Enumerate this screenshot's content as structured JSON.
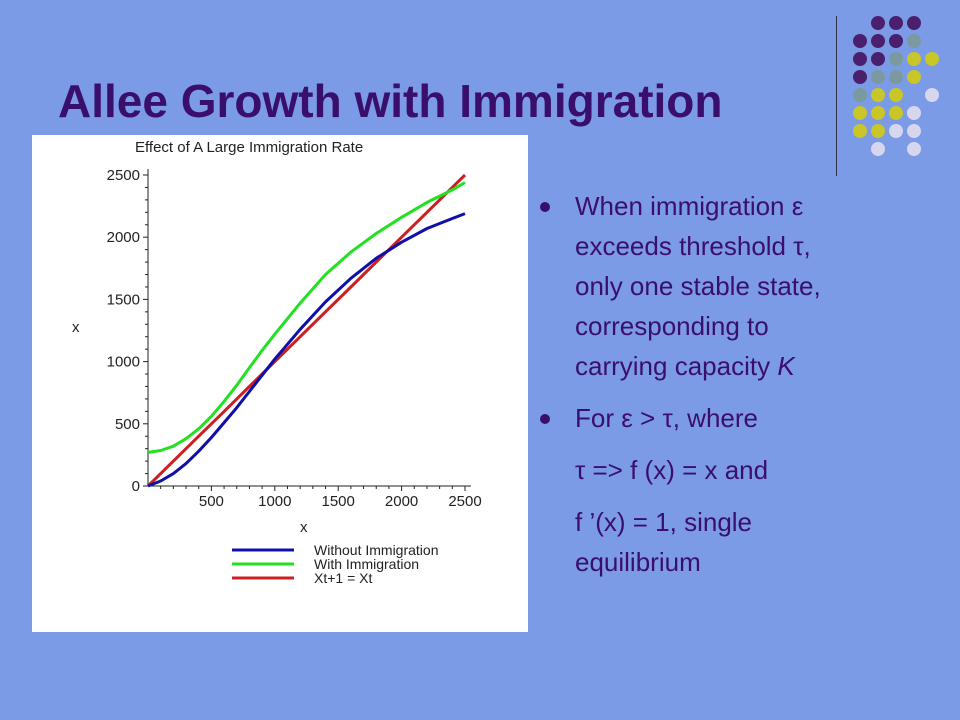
{
  "slide": {
    "title": "Allee Growth with Immigration",
    "colors": {
      "background": "#7b9be6",
      "title": "#3a0f6b",
      "text": "#3a0f6b"
    },
    "decor": {
      "dot_colors": {
        "purple": "#4a1f6e",
        "gray": "#7a9aa0",
        "yellow": "#c9c629",
        "lavender": "#d6d6ee"
      }
    }
  },
  "bullets": {
    "b1_lines": [
      "When immigration ε",
      "exceeds threshold τ,",
      "only one stable state,",
      "corresponding to",
      "carrying capacity"
    ],
    "b1_italic": "K",
    "b2_line": "For ε > τ, where",
    "sub1": "τ => f (x) = x and",
    "sub2_lines": [
      "f ’(x) = 1, single",
      "equilibrium"
    ]
  },
  "chart_data": {
    "type": "line",
    "title": "Effect of A Large Immigration Rate",
    "xlabel": "x",
    "ylabel": "x",
    "xlim": [
      0,
      2500
    ],
    "ylim": [
      0,
      2500
    ],
    "xticks": [
      500,
      1000,
      1500,
      2000,
      2500
    ],
    "yticks": [
      0,
      500,
      1000,
      1500,
      2000,
      2500
    ],
    "xtick_labels": [
      "500",
      "1000",
      "1500",
      "2000",
      "2500"
    ],
    "ytick_labels": [
      "0",
      "500",
      "1000",
      "1500",
      "2000",
      "2500"
    ],
    "legend_position": "bottom",
    "x": [
      0,
      100,
      200,
      300,
      400,
      500,
      600,
      700,
      800,
      900,
      1000,
      1200,
      1400,
      1600,
      1800,
      2000,
      2200,
      2400,
      2500
    ],
    "series": [
      {
        "name": "Without Immigration",
        "color": "#1010a8",
        "values": [
          0,
          40,
          100,
          180,
          280,
          390,
          510,
          630,
          760,
          890,
          1020,
          1260,
          1480,
          1670,
          1830,
          1960,
          2070,
          2150,
          2190
        ]
      },
      {
        "name": "With Immigration",
        "color": "#22e022",
        "values": [
          270,
          285,
          320,
          380,
          460,
          560,
          680,
          810,
          950,
          1090,
          1220,
          1470,
          1700,
          1880,
          2030,
          2160,
          2280,
          2380,
          2440
        ]
      },
      {
        "name": "Xt+1 = Xt",
        "color": "#cc2020",
        "values": [
          0,
          100,
          200,
          300,
          400,
          500,
          600,
          700,
          800,
          900,
          1000,
          1200,
          1400,
          1600,
          1800,
          2000,
          2200,
          2400,
          2500
        ]
      }
    ]
  }
}
